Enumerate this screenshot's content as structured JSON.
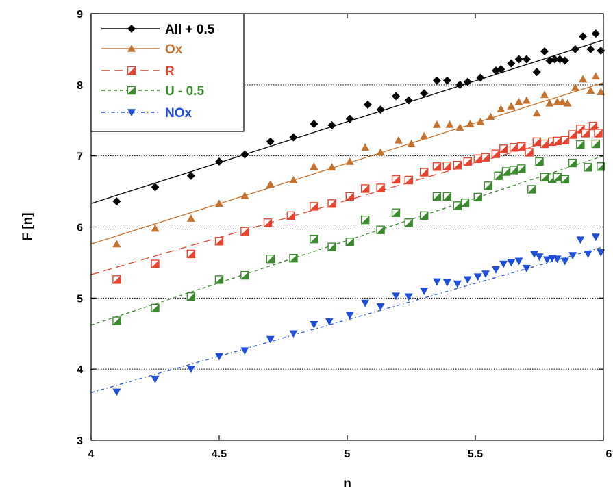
{
  "chart_data": {
    "type": "scatter",
    "title": "",
    "xlabel": "n",
    "ylabel": "F [n]",
    "xlim": [
      4,
      6
    ],
    "ylim": [
      3,
      9
    ],
    "xticks": [
      "4",
      "4.5",
      "5",
      "5.5",
      "6"
    ],
    "yticks": [
      "3",
      "4",
      "5",
      "6",
      "7",
      "8",
      "9"
    ],
    "grid": "horizontal dotted",
    "legend_position": "top-left",
    "series": [
      {
        "name": "All + 0.5",
        "color": "#000000",
        "marker": "diamond-filled",
        "line_style": "solid",
        "fit": [
          [
            4.0,
            6.33
          ],
          [
            6.0,
            8.63
          ]
        ],
        "x": [
          4.1,
          4.25,
          4.39,
          4.5,
          4.6,
          4.7,
          4.79,
          4.87,
          4.94,
          5.01,
          5.08,
          5.13,
          5.19,
          5.24,
          5.3,
          5.35,
          5.39,
          5.44,
          5.47,
          5.52,
          5.58,
          5.6,
          5.64,
          5.67,
          5.7,
          5.74,
          5.77,
          5.79,
          5.81,
          5.83,
          5.85,
          5.89,
          5.92,
          5.95,
          5.97,
          5.99
        ],
        "y": [
          6.36,
          6.56,
          6.72,
          6.92,
          7.02,
          7.2,
          7.26,
          7.45,
          7.43,
          7.52,
          7.72,
          7.65,
          7.84,
          7.78,
          7.88,
          8.06,
          8.06,
          8.0,
          8.04,
          8.1,
          8.2,
          8.22,
          8.3,
          8.36,
          8.36,
          8.18,
          8.47,
          8.34,
          8.36,
          8.36,
          8.34,
          8.5,
          8.68,
          8.5,
          8.72,
          8.48
        ]
      },
      {
        "name": "Ox",
        "color": "#c5722e",
        "marker": "triangle-up-filled",
        "line_style": "solid",
        "fit": [
          [
            4.0,
            5.76
          ],
          [
            6.0,
            8.03
          ]
        ],
        "x": [
          4.1,
          4.25,
          4.39,
          4.5,
          4.6,
          4.7,
          4.79,
          4.87,
          4.94,
          5.01,
          5.07,
          5.13,
          5.2,
          5.25,
          5.3,
          5.35,
          5.4,
          5.44,
          5.48,
          5.52,
          5.56,
          5.6,
          5.64,
          5.67,
          5.7,
          5.74,
          5.77,
          5.79,
          5.82,
          5.84,
          5.86,
          5.89,
          5.92,
          5.95,
          5.97,
          5.99
        ],
        "y": [
          5.76,
          5.98,
          6.12,
          6.33,
          6.44,
          6.6,
          6.66,
          6.85,
          6.84,
          6.92,
          7.12,
          7.05,
          7.22,
          7.17,
          7.28,
          7.44,
          7.44,
          7.4,
          7.45,
          7.48,
          7.55,
          7.66,
          7.7,
          7.76,
          7.78,
          7.6,
          7.86,
          7.74,
          7.76,
          7.76,
          7.74,
          7.96,
          8.08,
          7.92,
          8.12,
          7.9
        ]
      },
      {
        "name": "R",
        "color": "#e8432e",
        "marker": "square-half",
        "line_style": "long-dash",
        "fit": [
          [
            4.0,
            5.33
          ],
          [
            6.0,
            7.42
          ]
        ],
        "x": [
          4.1,
          4.25,
          4.39,
          4.5,
          4.6,
          4.69,
          4.78,
          4.87,
          4.94,
          5.01,
          5.07,
          5.13,
          5.19,
          5.24,
          5.3,
          5.35,
          5.39,
          5.43,
          5.47,
          5.51,
          5.54,
          5.58,
          5.61,
          5.65,
          5.68,
          5.71,
          5.74,
          5.77,
          5.8,
          5.82,
          5.85,
          5.88,
          5.91,
          5.93,
          5.96,
          5.98
        ],
        "y": [
          5.26,
          5.48,
          5.62,
          5.8,
          5.94,
          6.06,
          6.16,
          6.29,
          6.33,
          6.43,
          6.54,
          6.55,
          6.67,
          6.66,
          6.77,
          6.85,
          6.86,
          6.87,
          6.92,
          6.96,
          6.98,
          7.03,
          7.1,
          7.12,
          7.13,
          7.05,
          7.2,
          7.17,
          7.2,
          7.21,
          7.22,
          7.3,
          7.38,
          7.32,
          7.42,
          7.32
        ]
      },
      {
        "name": "U - 0.5",
        "color": "#3b8a2e",
        "marker": "square-half",
        "line_style": "short-dash",
        "fit": [
          [
            4.0,
            4.62
          ],
          [
            6.0,
            7.0
          ]
        ],
        "x": [
          4.1,
          4.25,
          4.39,
          4.5,
          4.6,
          4.7,
          4.79,
          4.87,
          4.94,
          5.01,
          5.07,
          5.13,
          5.19,
          5.24,
          5.3,
          5.35,
          5.39,
          5.43,
          5.46,
          5.51,
          5.55,
          5.59,
          5.62,
          5.65,
          5.68,
          5.72,
          5.75,
          5.77,
          5.8,
          5.82,
          5.85,
          5.88,
          5.91,
          5.94,
          5.97,
          5.99
        ],
        "y": [
          4.68,
          4.86,
          5.02,
          5.26,
          5.32,
          5.55,
          5.56,
          5.83,
          5.72,
          5.79,
          6.1,
          5.96,
          6.2,
          6.06,
          6.16,
          6.43,
          6.43,
          6.3,
          6.34,
          6.42,
          6.58,
          6.72,
          6.78,
          6.8,
          6.82,
          6.53,
          6.92,
          6.7,
          6.68,
          6.7,
          6.67,
          6.9,
          7.16,
          6.84,
          7.17,
          6.85
        ]
      },
      {
        "name": "NOx",
        "color": "#1f4fd8",
        "marker": "triangle-down-filled",
        "line_style": "dash-dot",
        "fit": [
          [
            4.0,
            3.67
          ],
          [
            6.0,
            5.72
          ]
        ],
        "x": [
          4.1,
          4.25,
          4.39,
          4.5,
          4.6,
          4.7,
          4.79,
          4.87,
          4.93,
          5.01,
          5.07,
          5.13,
          5.19,
          5.24,
          5.3,
          5.35,
          5.39,
          5.43,
          5.47,
          5.51,
          5.54,
          5.58,
          5.61,
          5.64,
          5.67,
          5.7,
          5.73,
          5.75,
          5.78,
          5.8,
          5.82,
          5.85,
          5.88,
          5.91,
          5.94,
          5.97,
          5.99
        ],
        "y": [
          3.68,
          3.86,
          4.0,
          4.18,
          4.26,
          4.42,
          4.5,
          4.63,
          4.67,
          4.76,
          4.93,
          4.88,
          5.03,
          5.02,
          5.1,
          5.23,
          5.22,
          5.2,
          5.26,
          5.3,
          5.34,
          5.4,
          5.48,
          5.5,
          5.52,
          5.42,
          5.62,
          5.58,
          5.54,
          5.56,
          5.55,
          5.52,
          5.6,
          5.82,
          5.62,
          5.86,
          5.64
        ]
      }
    ]
  }
}
